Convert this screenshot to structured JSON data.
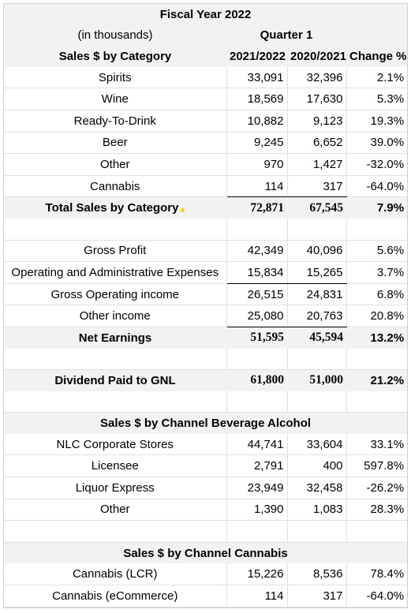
{
  "header": {
    "title": "Fiscal Year 2022",
    "units": "(in thousands)",
    "period": "Quarter 1",
    "section_label": "Sales $ by Category",
    "col_current": "2021/2022",
    "col_prior": "2020/2021",
    "col_change": "Change %"
  },
  "category": [
    {
      "label": "Spirits",
      "cur": "33,091",
      "prior": "32,396",
      "chg": "2.1%"
    },
    {
      "label": "Wine",
      "cur": "18,569",
      "prior": "17,630",
      "chg": "5.3%"
    },
    {
      "label": "Ready-To-Drink",
      "cur": "10,882",
      "prior": "9,123",
      "chg": "19.3%"
    },
    {
      "label": "Beer",
      "cur": "9,245",
      "prior": "6,652",
      "chg": "39.0%"
    },
    {
      "label": "Other",
      "cur": "970",
      "prior": "1,427",
      "chg": "-32.0%"
    },
    {
      "label": "Cannabis",
      "cur": "114",
      "prior": "317",
      "chg": "-64.0%"
    }
  ],
  "total_category": {
    "label": "Total Sales by Category",
    "cur": "72,871",
    "prior": "67,545",
    "chg": "7.9%"
  },
  "earnings": [
    {
      "label": "Gross Profit",
      "cur": "42,349",
      "prior": "40,096",
      "chg": "5.6%"
    },
    {
      "label": "Operating and Administrative Expenses",
      "cur": "15,834",
      "prior": "15,265",
      "chg": "3.7%"
    },
    {
      "label": "Gross Operating income",
      "cur": "26,515",
      "prior": "24,831",
      "chg": "6.8%"
    },
    {
      "label": "Other income",
      "cur": "25,080",
      "prior": "20,763",
      "chg": "20.8%"
    }
  ],
  "net_earnings": {
    "label": "Net Earnings",
    "cur": "51,595",
    "prior": "45,594",
    "chg": "13.2%"
  },
  "dividend": {
    "label": "Dividend Paid to GNL",
    "cur": "61,800",
    "prior": "51,000",
    "chg": "21.2%"
  },
  "channel_alcohol": {
    "title": "Sales $ by Channel Beverage Alcohol",
    "rows": [
      {
        "label": "NLC Corporate Stores",
        "cur": "44,741",
        "prior": "33,604",
        "chg": "33.1%"
      },
      {
        "label": "Licensee",
        "cur": "2,791",
        "prior": "400",
        "chg": "597.8%"
      },
      {
        "label": "Liquor Express",
        "cur": "23,949",
        "prior": "32,458",
        "chg": "-26.2%"
      },
      {
        "label": "Other",
        "cur": "1,390",
        "prior": "1,083",
        "chg": "28.3%"
      }
    ]
  },
  "channel_cannabis": {
    "title": "Sales $ by Channel Cannabis",
    "rows": [
      {
        "label": "Cannabis (LCR)",
        "cur": "15,226",
        "prior": "8,536",
        "chg": "78.4%"
      },
      {
        "label": "Cannabis (eCommerce)",
        "cur": "114",
        "prior": "317",
        "chg": "-64.0%"
      }
    ]
  }
}
